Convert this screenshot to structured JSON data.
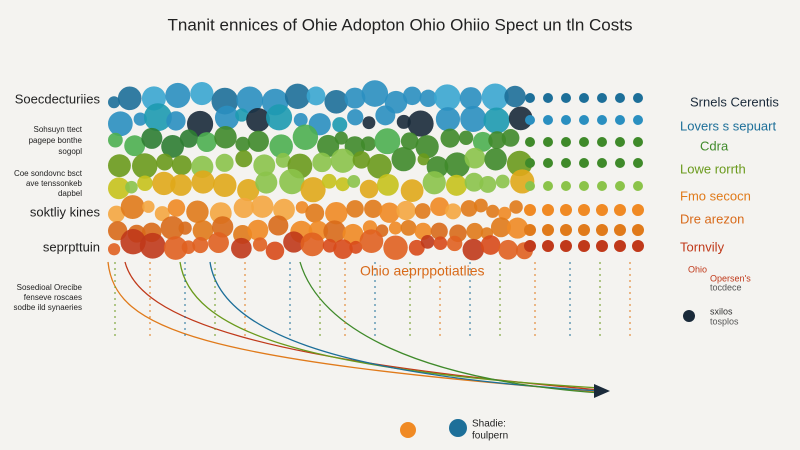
{
  "title": "Tnanit ennices of Ohie Adopton Ohio Ohiio Spect un tln Costs",
  "left_labels": [
    {
      "text": "Soecdecturiies",
      "size": "big"
    },
    {
      "text": "Sohsuyn ttect",
      "size": "small"
    },
    {
      "text": "pagepe bonthe",
      "size": "small"
    },
    {
      "text": "sogopl",
      "size": "small"
    },
    {
      "text": "Coe sondovnc bsct",
      "size": "small"
    },
    {
      "text": "ave tenssonkeb",
      "size": "small"
    },
    {
      "text": "dapbel",
      "size": "small"
    },
    {
      "text": "soktliy kines",
      "size": "big"
    },
    {
      "text": "seprpttuin",
      "size": "big"
    },
    {
      "text": "Sosedioal Orecibe",
      "size": "small"
    },
    {
      "text": "fenseve roscaes",
      "size": "small"
    },
    {
      "text": "sodbe ild synaeries",
      "size": "small"
    }
  ],
  "right_labels": [
    {
      "text": "Srnels Cerentis",
      "color": "#1a2a3a"
    },
    {
      "text": "Lovers s sepuart",
      "color": "#1d6f99"
    },
    {
      "text": "Cdra",
      "color": "#3f8a2a"
    },
    {
      "text": "Lowe rorrth",
      "color": "#6a9a1c"
    },
    {
      "text": "Fmo secocn",
      "color": "#e07a1a"
    },
    {
      "text": "Dre arezon",
      "color": "#d86a1a"
    },
    {
      "text": "Tornvily",
      "color": "#c0391a"
    },
    {
      "text": "Ohio",
      "color": "#c0391a"
    },
    {
      "text": "Opersen's",
      "color": "#c0391a"
    },
    {
      "text": "tocdece",
      "color": "#555555"
    },
    {
      "text": "sxilos",
      "color": "#333333"
    },
    {
      "text": "tosplos",
      "color": "#555555"
    }
  ],
  "middle_label": "Ohio aeprppotiatlies",
  "bottom_legend": [
    "Shadie:",
    "foulpern"
  ]
}
